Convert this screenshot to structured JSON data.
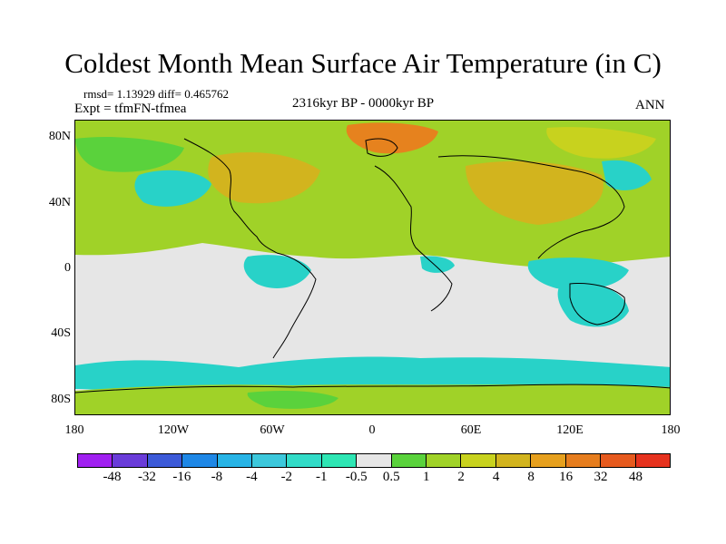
{
  "title": "Coldest Month Mean Surface Air Temperature (in C)",
  "stats_text": "rmsd= 1.13929 diff= 0.465762",
  "experiment_text": "Expt = tfmFN-tfmea",
  "period_text": "2316kyr BP - 0000kyr BP",
  "season_text": "ANN",
  "lat_labels": [
    "80N",
    "40N",
    "0",
    "40S",
    "80S"
  ],
  "lon_labels": [
    "180",
    "120W",
    "60W",
    "0",
    "60E",
    "120E",
    "180"
  ],
  "colorbar": {
    "colors": [
      "#a020f0",
      "#6a3cd9",
      "#3c5ad8",
      "#1e87e6",
      "#28b4e6",
      "#3cc8dc",
      "#32dcc8",
      "#2ee6b4",
      "#e6e6e6",
      "#5ad23c",
      "#a0d228",
      "#c8d21e",
      "#d2b41e",
      "#e6a01e",
      "#e67d1e",
      "#e65a1e",
      "#e6321e"
    ],
    "labels": [
      "-48",
      "-32",
      "-16",
      "-8",
      "-4",
      "-2",
      "-1",
      "-0.5",
      "0.5",
      "1",
      "2",
      "4",
      "8",
      "16",
      "32",
      "48"
    ]
  },
  "legend_colors": {
    "cool_light": "#28d2c8",
    "neutral": "#e6e6e6",
    "warm_light": "#a0d228",
    "warm_mid": "#d2b41e",
    "warm_strong": "#e6821e"
  }
}
